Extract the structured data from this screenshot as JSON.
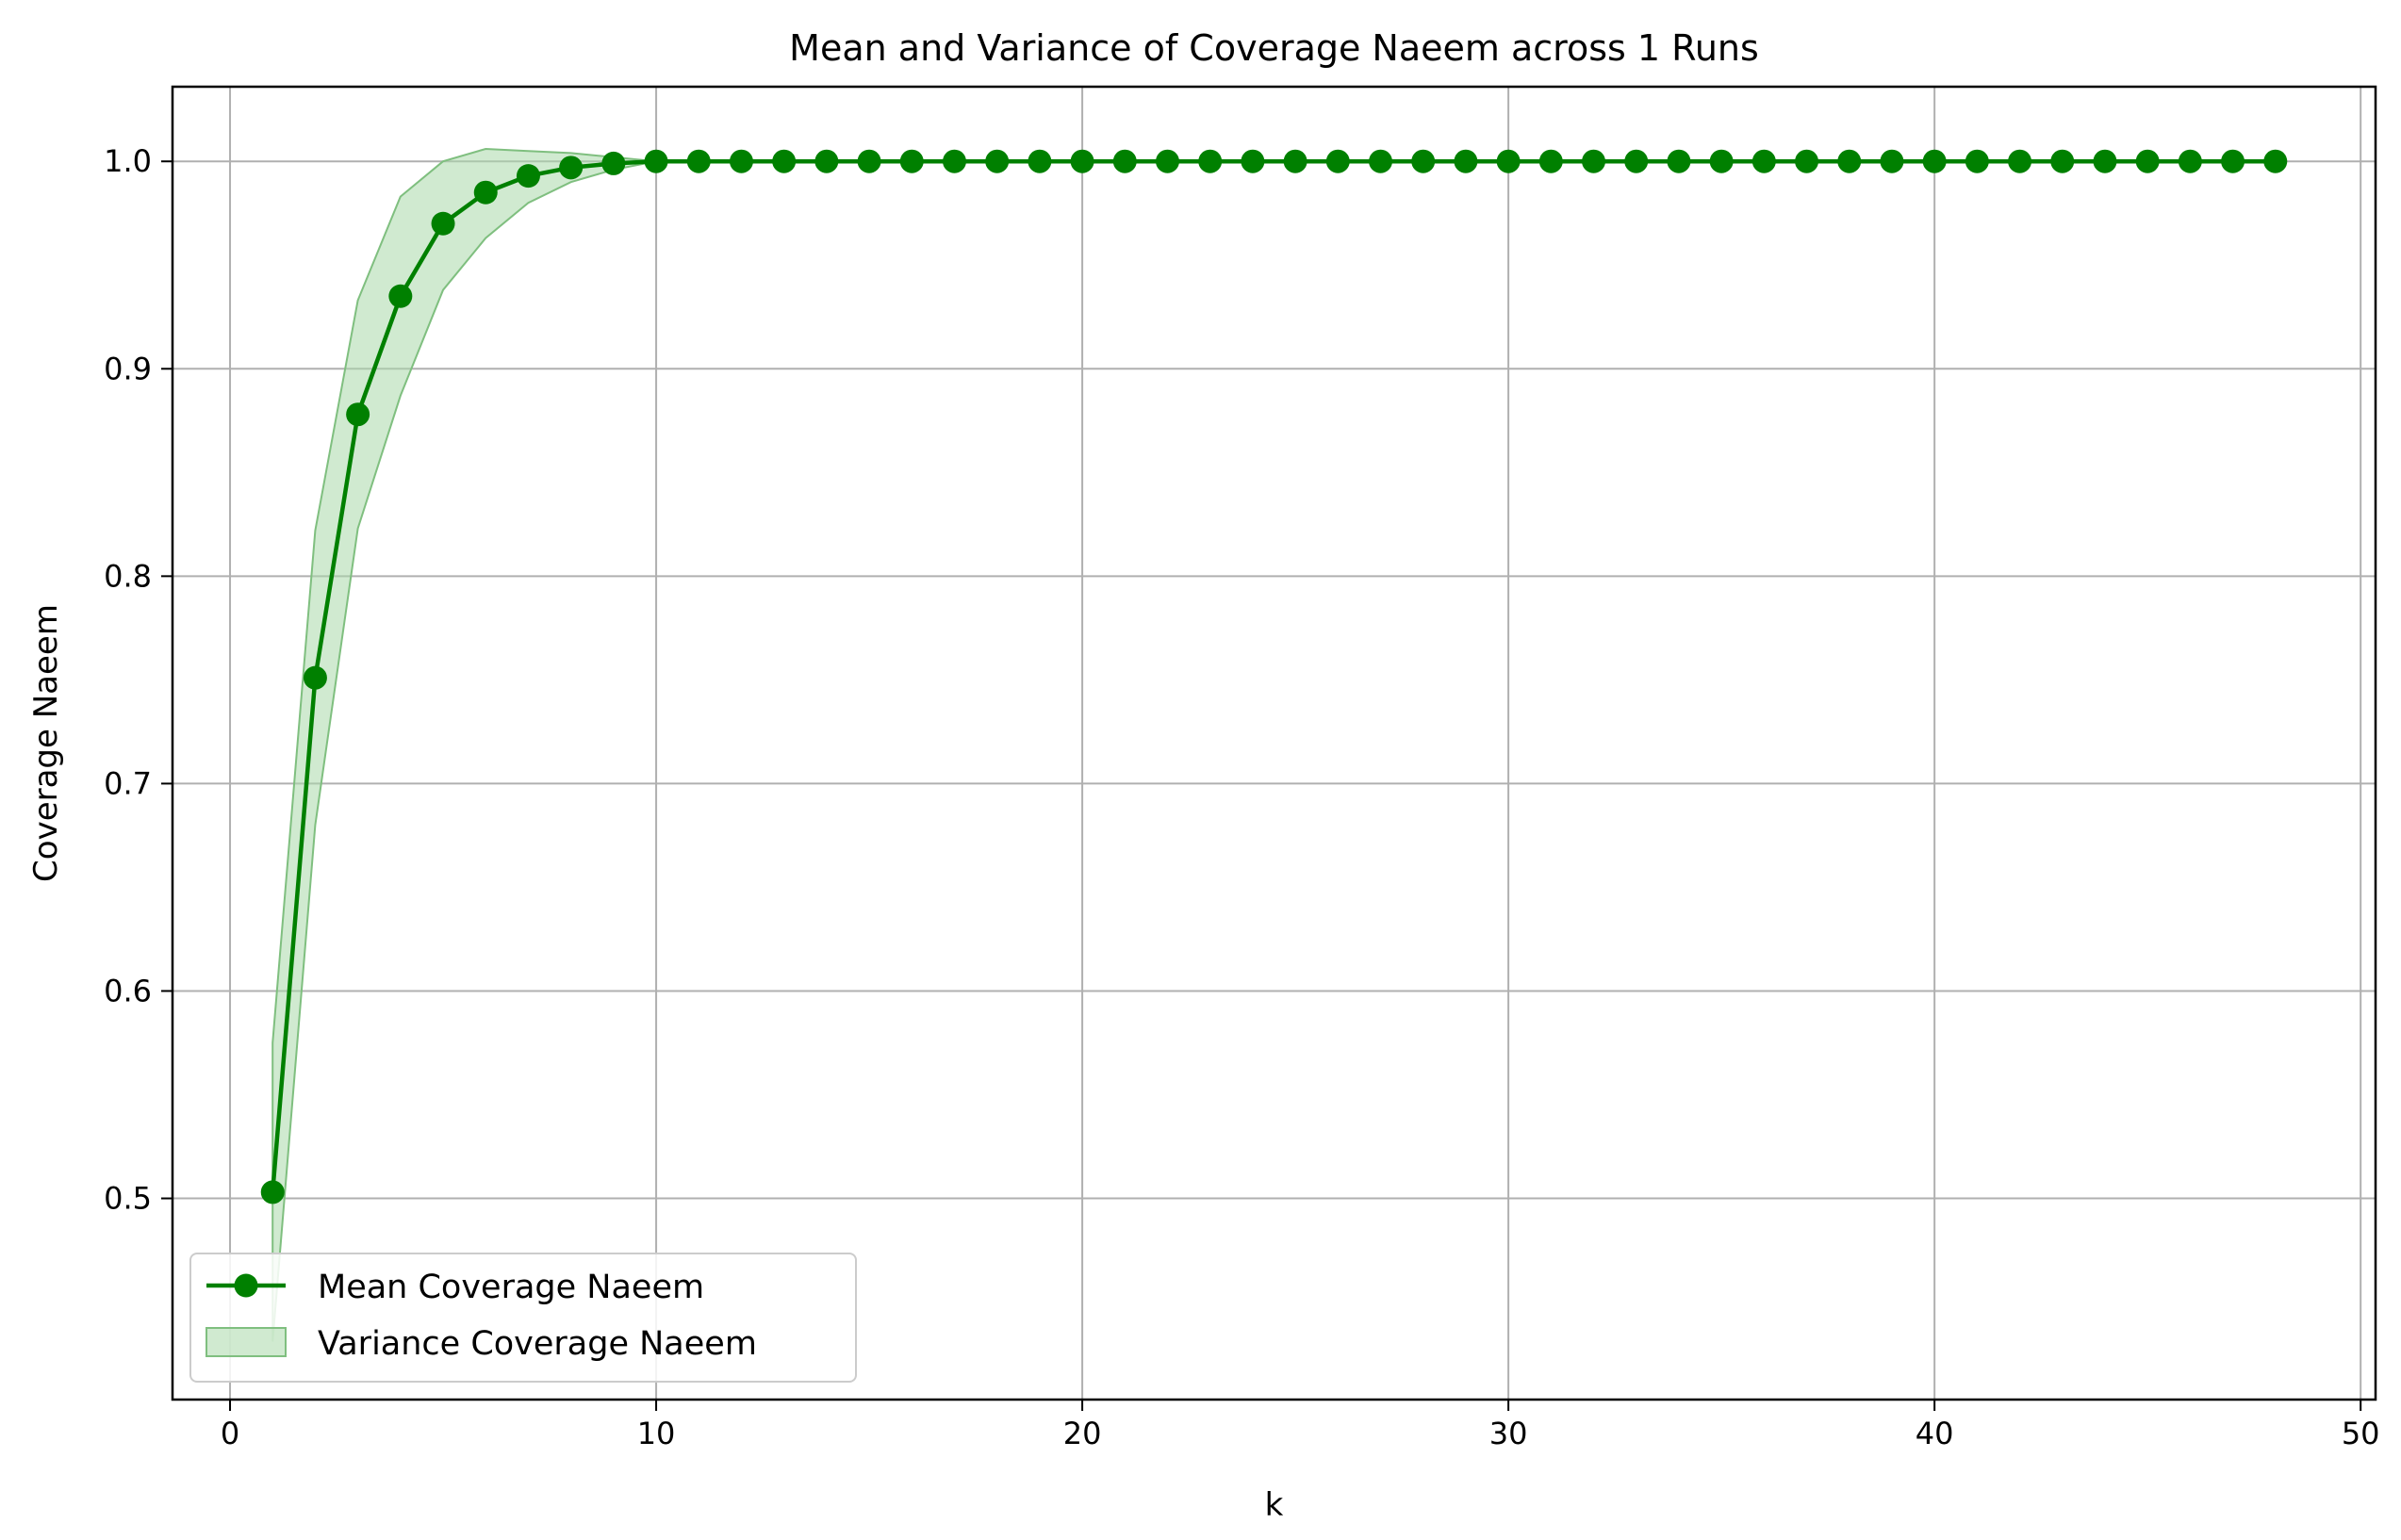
{
  "chart_data": {
    "type": "line",
    "title": "Mean and Variance of Coverage Naeem across 1 Runs",
    "xlabel": "k",
    "ylabel": "Coverage Naeem",
    "xlim": [
      -1.35,
      50.35
    ],
    "ylim": [
      0.403,
      1.036
    ],
    "xticks": [
      0,
      10,
      20,
      30,
      40,
      50
    ],
    "xtick_labels": [
      "0",
      "10",
      "20",
      "30",
      "40",
      "50"
    ],
    "yticks": [
      0.5,
      0.6,
      0.7,
      0.8,
      0.9,
      1.0
    ],
    "ytick_labels": [
      "0.5",
      "0.6",
      "0.7",
      "0.8",
      "0.9",
      "1.0"
    ],
    "grid": true,
    "legend_position": "lower-left",
    "colors": {
      "line": "#008000",
      "band_fill": "#a9d8a9",
      "band_edge": "#7fbf7f",
      "grid": "#b0b0b0"
    },
    "x": [
      1,
      2,
      3,
      4,
      5,
      6,
      7,
      8,
      9,
      10,
      11,
      12,
      13,
      14,
      15,
      16,
      17,
      18,
      19,
      20,
      21,
      22,
      23,
      24,
      25,
      26,
      27,
      28,
      29,
      30,
      31,
      32,
      33,
      34,
      35,
      36,
      37,
      38,
      39,
      40,
      41,
      42,
      43,
      44,
      45,
      46,
      47,
      48
    ],
    "series": [
      {
        "name": "Mean Coverage Naeem",
        "kind": "line-marker",
        "values": [
          0.503,
          0.751,
          0.878,
          0.935,
          0.97,
          0.985,
          0.993,
          0.997,
          0.999,
          1.0,
          1.0,
          1.0,
          1.0,
          1.0,
          1.0,
          1.0,
          1.0,
          1.0,
          1.0,
          1.0,
          1.0,
          1.0,
          1.0,
          1.0,
          1.0,
          1.0,
          1.0,
          1.0,
          1.0,
          1.0,
          1.0,
          1.0,
          1.0,
          1.0,
          1.0,
          1.0,
          1.0,
          1.0,
          1.0,
          1.0,
          1.0,
          1.0,
          1.0,
          1.0,
          1.0,
          1.0,
          1.0,
          1.0
        ]
      },
      {
        "name": "Variance Coverage Naeem",
        "kind": "band",
        "upper": [
          0.575,
          0.822,
          0.933,
          0.983,
          1.0,
          1.006,
          1.005,
          1.004,
          1.002,
          1.0,
          1.0,
          1.0,
          1.0,
          1.0,
          1.0,
          1.0,
          1.0,
          1.0,
          1.0,
          1.0,
          1.0,
          1.0,
          1.0,
          1.0,
          1.0,
          1.0,
          1.0,
          1.0,
          1.0,
          1.0,
          1.0,
          1.0,
          1.0,
          1.0,
          1.0,
          1.0,
          1.0,
          1.0,
          1.0,
          1.0,
          1.0,
          1.0,
          1.0,
          1.0,
          1.0,
          1.0,
          1.0,
          1.0
        ],
        "lower": [
          0.431,
          0.68,
          0.823,
          0.887,
          0.938,
          0.963,
          0.98,
          0.99,
          0.996,
          1.0,
          1.0,
          1.0,
          1.0,
          1.0,
          1.0,
          1.0,
          1.0,
          1.0,
          1.0,
          1.0,
          1.0,
          1.0,
          1.0,
          1.0,
          1.0,
          1.0,
          1.0,
          1.0,
          1.0,
          1.0,
          1.0,
          1.0,
          1.0,
          1.0,
          1.0,
          1.0,
          1.0,
          1.0,
          1.0,
          1.0,
          1.0,
          1.0,
          1.0,
          1.0,
          1.0,
          1.0,
          1.0,
          1.0
        ]
      }
    ]
  }
}
